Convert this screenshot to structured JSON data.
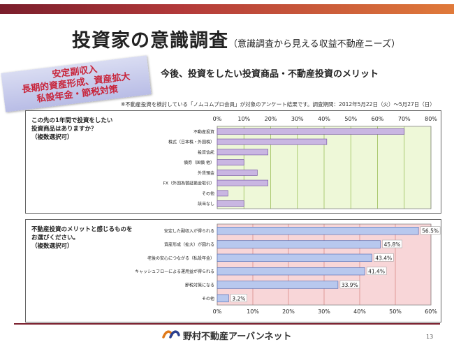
{
  "header": {
    "title": "投資家の意識調査",
    "subtitle": "（意識調査から見える収益不動産ニーズ）"
  },
  "badge": {
    "lines": [
      "安定副収入",
      "長期的資産形成、資産拡大",
      "私設年金・節税対策"
    ]
  },
  "heading": "今後、投資をしたい投資商品・不動産投資のメリット",
  "note": "※不動産投資を検討している「ノムコムプロ会員」が対象のアンケート結果です。調査期間：2012年5月22日（火）～5月27日（日）",
  "panel1": {
    "question_lines": [
      "この先の1年間で投資をしたい",
      "投資商品はありますか？",
      "（複数選択可）"
    ]
  },
  "panel2": {
    "question_lines": [
      "不動産投資のメリットと感じるものを",
      "お選びください。",
      "（複数選択可）"
    ]
  },
  "chart_data": [
    {
      "type": "bar",
      "orientation": "horizontal",
      "categories": [
        "不動産投資",
        "株式（日本株・外国株）",
        "投資信託",
        "債券（国債 他）",
        "外貨預金",
        "FX（外国為替証拠金取引）",
        "その他",
        "該当なし"
      ],
      "values": [
        70,
        41,
        19,
        10,
        15,
        19,
        4,
        10
      ],
      "x_ticks": [
        "0%",
        "10%",
        "20%",
        "30%",
        "40%",
        "50%",
        "60%",
        "70%",
        "80%"
      ],
      "xlim": [
        0,
        80
      ],
      "grid": true,
      "show_value_labels": false,
      "colors": {
        "bar": "#c9b6e2",
        "bar_edge": "#7a5aa8",
        "plot_bg": "#eef8d8",
        "grid": "#9bbf5a"
      }
    },
    {
      "type": "bar",
      "orientation": "horizontal",
      "categories": [
        "安定した副収入が得られる",
        "資産形成（拡大）が図れる",
        "老後の安心につながる（私設年金）",
        "キャッシュフローによる運用益が得られる",
        "節税対策になる",
        "その他"
      ],
      "values": [
        56.5,
        45.8,
        43.4,
        41.4,
        33.9,
        3.2
      ],
      "value_labels": [
        "56.5%",
        "45.8%",
        "43.4%",
        "41.4%",
        "33.9%",
        "3.2%"
      ],
      "x_ticks": [
        "0%",
        "10%",
        "20%",
        "30%",
        "40%",
        "50%",
        "60%"
      ],
      "xlim": [
        0,
        60
      ],
      "grid": true,
      "show_value_labels": true,
      "colors": {
        "bar": "#b8c8ee",
        "bar_edge": "#5a72b8",
        "plot_bg": "#f8d6d8",
        "grid": "#d88a8a"
      }
    }
  ],
  "footer": {
    "company": "野村不動産アーバンネット",
    "page_number": "13"
  },
  "colors": {
    "topbar": "#b33a3a",
    "badge_text": "#c8243a",
    "footer_line": "#7a1e2c"
  }
}
